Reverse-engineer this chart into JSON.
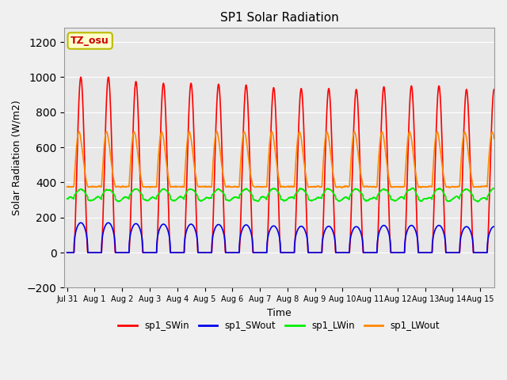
{
  "title": "SP1 Solar Radiation",
  "xlabel": "Time",
  "ylabel": "Solar Radiation (W/m2)",
  "ylim": [
    -200,
    1280
  ],
  "yticks": [
    -200,
    0,
    200,
    400,
    600,
    800,
    1000,
    1200
  ],
  "n_days": 15,
  "annotation_text": "TZ_osu",
  "annotation_color": "#cc0000",
  "annotation_bg": "#ffffcc",
  "annotation_border": "#bbbb00",
  "lines": {
    "sp1_SWin": {
      "color": "#ff0000",
      "lw": 1.2
    },
    "sp1_SWout": {
      "color": "#0000ee",
      "lw": 1.2
    },
    "sp1_LWin": {
      "color": "#00ee00",
      "lw": 1.2
    },
    "sp1_LWout": {
      "color": "#ff8800",
      "lw": 1.2
    }
  },
  "xtick_labels": [
    "Jul 31",
    "Aug 1",
    "Aug 2",
    "Aug 3",
    "Aug 4",
    "Aug 5",
    "Aug 6",
    "Aug 7",
    "Aug 8",
    "Aug 9",
    "Aug 10",
    "Aug 11",
    "Aug 12",
    "Aug 13",
    "Aug 14",
    "Aug 15"
  ],
  "sw_in_peaks": [
    1000,
    1000,
    975,
    965,
    965,
    960,
    955,
    940,
    935,
    935,
    930,
    945,
    950,
    950,
    930
  ],
  "sw_out_peaks": [
    170,
    170,
    165,
    162,
    162,
    160,
    158,
    152,
    150,
    150,
    148,
    155,
    155,
    155,
    148
  ],
  "lw_in_base": 320,
  "lw_in_amp": 60,
  "lw_out_base": 375,
  "lw_out_morning_peak": 650,
  "lw_out_noon_dip": 500,
  "lw_out_afternoon_peak": 620
}
